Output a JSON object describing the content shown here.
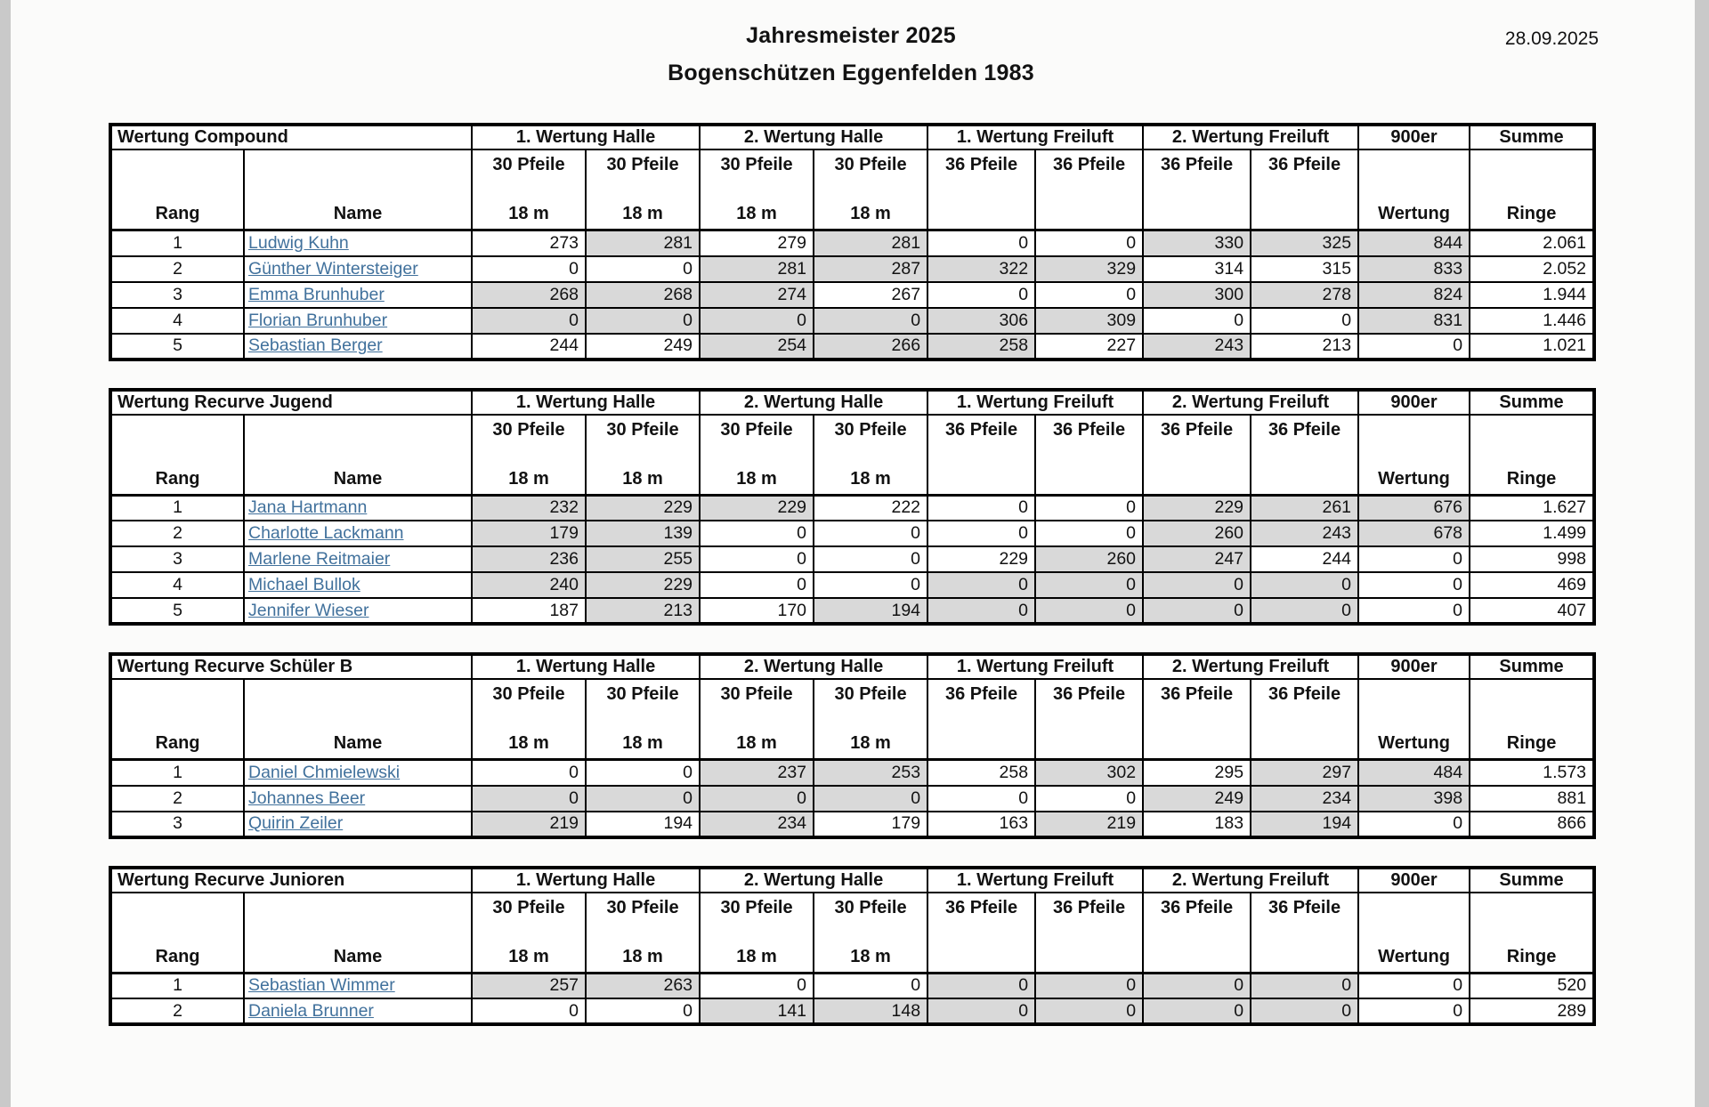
{
  "page": {
    "title": "Jahresmeister 2025",
    "subtitle": "Bogenschützen Eggenfelden 1983",
    "date": "28.09.2025"
  },
  "colors": {
    "shaded_cell": "#d9d9d9",
    "link_text": "#41719c",
    "page_edge": "#c9c9c9",
    "table_border": "#000000"
  },
  "header_labels": {
    "groups": [
      "1. Wertung Halle",
      "2. Wertung Halle",
      "1. Wertung Freiluft",
      "2. Wertung Freiluft",
      "900er",
      "Summe"
    ],
    "rang": "Rang",
    "name": "Name",
    "pfeile30": "30 Pfeile",
    "dist18": "18 m",
    "pfeile36": "36 Pfeile",
    "wertung": "Wertung",
    "ringe": "Ringe"
  },
  "tables": [
    {
      "title": "Wertung Compound",
      "rows": [
        {
          "rang": "1",
          "name": "Ludwig Kuhn",
          "scores": [
            "273",
            "281",
            "279",
            "281",
            "0",
            "0",
            "330",
            "325",
            "844"
          ],
          "shaded": [
            false,
            true,
            false,
            true,
            false,
            false,
            true,
            true,
            true
          ],
          "summe": "2.061"
        },
        {
          "rang": "2",
          "name": "Günther Wintersteiger",
          "scores": [
            "0",
            "0",
            "281",
            "287",
            "322",
            "329",
            "314",
            "315",
            "833"
          ],
          "shaded": [
            false,
            false,
            true,
            true,
            true,
            true,
            false,
            false,
            true
          ],
          "summe": "2.052"
        },
        {
          "rang": "3",
          "name": "Emma Brunhuber",
          "scores": [
            "268",
            "268",
            "274",
            "267",
            "0",
            "0",
            "300",
            "278",
            "824"
          ],
          "shaded": [
            true,
            true,
            true,
            false,
            false,
            false,
            true,
            true,
            true
          ],
          "summe": "1.944"
        },
        {
          "rang": "4",
          "name": "Florian Brunhuber",
          "scores": [
            "0",
            "0",
            "0",
            "0",
            "306",
            "309",
            "0",
            "0",
            "831"
          ],
          "shaded": [
            true,
            true,
            true,
            true,
            true,
            true,
            false,
            false,
            true
          ],
          "summe": "1.446"
        },
        {
          "rang": "5",
          "name": "Sebastian Berger",
          "scores": [
            "244",
            "249",
            "254",
            "266",
            "258",
            "227",
            "243",
            "213",
            "0"
          ],
          "shaded": [
            false,
            false,
            true,
            true,
            true,
            false,
            true,
            false,
            false
          ],
          "summe": "1.021"
        }
      ]
    },
    {
      "title": "Wertung Recurve Jugend",
      "rows": [
        {
          "rang": "1",
          "name": "Jana Hartmann",
          "scores": [
            "232",
            "229",
            "229",
            "222",
            "0",
            "0",
            "229",
            "261",
            "676"
          ],
          "shaded": [
            true,
            true,
            true,
            false,
            false,
            false,
            true,
            true,
            true
          ],
          "summe": "1.627"
        },
        {
          "rang": "2",
          "name": "Charlotte Lackmann",
          "scores": [
            "179",
            "139",
            "0",
            "0",
            "0",
            "0",
            "260",
            "243",
            "678"
          ],
          "shaded": [
            true,
            true,
            false,
            false,
            false,
            false,
            true,
            true,
            true
          ],
          "summe": "1.499"
        },
        {
          "rang": "3",
          "name": "Marlene Reitmaier",
          "scores": [
            "236",
            "255",
            "0",
            "0",
            "229",
            "260",
            "247",
            "244",
            "0"
          ],
          "shaded": [
            true,
            true,
            false,
            false,
            false,
            true,
            true,
            false,
            false
          ],
          "summe": "998"
        },
        {
          "rang": "4",
          "name": "Michael Bullok",
          "scores": [
            "240",
            "229",
            "0",
            "0",
            "0",
            "0",
            "0",
            "0",
            "0"
          ],
          "shaded": [
            true,
            true,
            false,
            false,
            true,
            true,
            true,
            true,
            false
          ],
          "summe": "469"
        },
        {
          "rang": "5",
          "name": "Jennifer Wieser",
          "scores": [
            "187",
            "213",
            "170",
            "194",
            "0",
            "0",
            "0",
            "0",
            "0"
          ],
          "shaded": [
            false,
            true,
            false,
            true,
            true,
            true,
            true,
            true,
            false
          ],
          "summe": "407"
        }
      ]
    },
    {
      "title": "Wertung Recurve Schüler B",
      "rows": [
        {
          "rang": "1",
          "name": "Daniel Chmielewski",
          "scores": [
            "0",
            "0",
            "237",
            "253",
            "258",
            "302",
            "295",
            "297",
            "484"
          ],
          "shaded": [
            false,
            false,
            true,
            true,
            false,
            true,
            false,
            true,
            true
          ],
          "summe": "1.573"
        },
        {
          "rang": "2",
          "name": "Johannes Beer",
          "scores": [
            "0",
            "0",
            "0",
            "0",
            "0",
            "0",
            "249",
            "234",
            "398"
          ],
          "shaded": [
            true,
            true,
            true,
            true,
            false,
            false,
            true,
            true,
            true
          ],
          "summe": "881"
        },
        {
          "rang": "3",
          "name": "Quirin Zeiler",
          "scores": [
            "219",
            "194",
            "234",
            "179",
            "163",
            "219",
            "183",
            "194",
            "0"
          ],
          "shaded": [
            true,
            false,
            true,
            false,
            false,
            true,
            false,
            true,
            false
          ],
          "summe": "866"
        }
      ]
    },
    {
      "title": "Wertung Recurve Junioren",
      "rows": [
        {
          "rang": "1",
          "name": "Sebastian Wimmer",
          "scores": [
            "257",
            "263",
            "0",
            "0",
            "0",
            "0",
            "0",
            "0",
            "0"
          ],
          "shaded": [
            true,
            true,
            false,
            false,
            true,
            true,
            true,
            true,
            false
          ],
          "summe": "520"
        },
        {
          "rang": "2",
          "name": "Daniela Brunner",
          "scores": [
            "0",
            "0",
            "141",
            "148",
            "0",
            "0",
            "0",
            "0",
            "0"
          ],
          "shaded": [
            false,
            false,
            true,
            true,
            true,
            true,
            true,
            true,
            false
          ],
          "summe": "289"
        }
      ]
    }
  ]
}
